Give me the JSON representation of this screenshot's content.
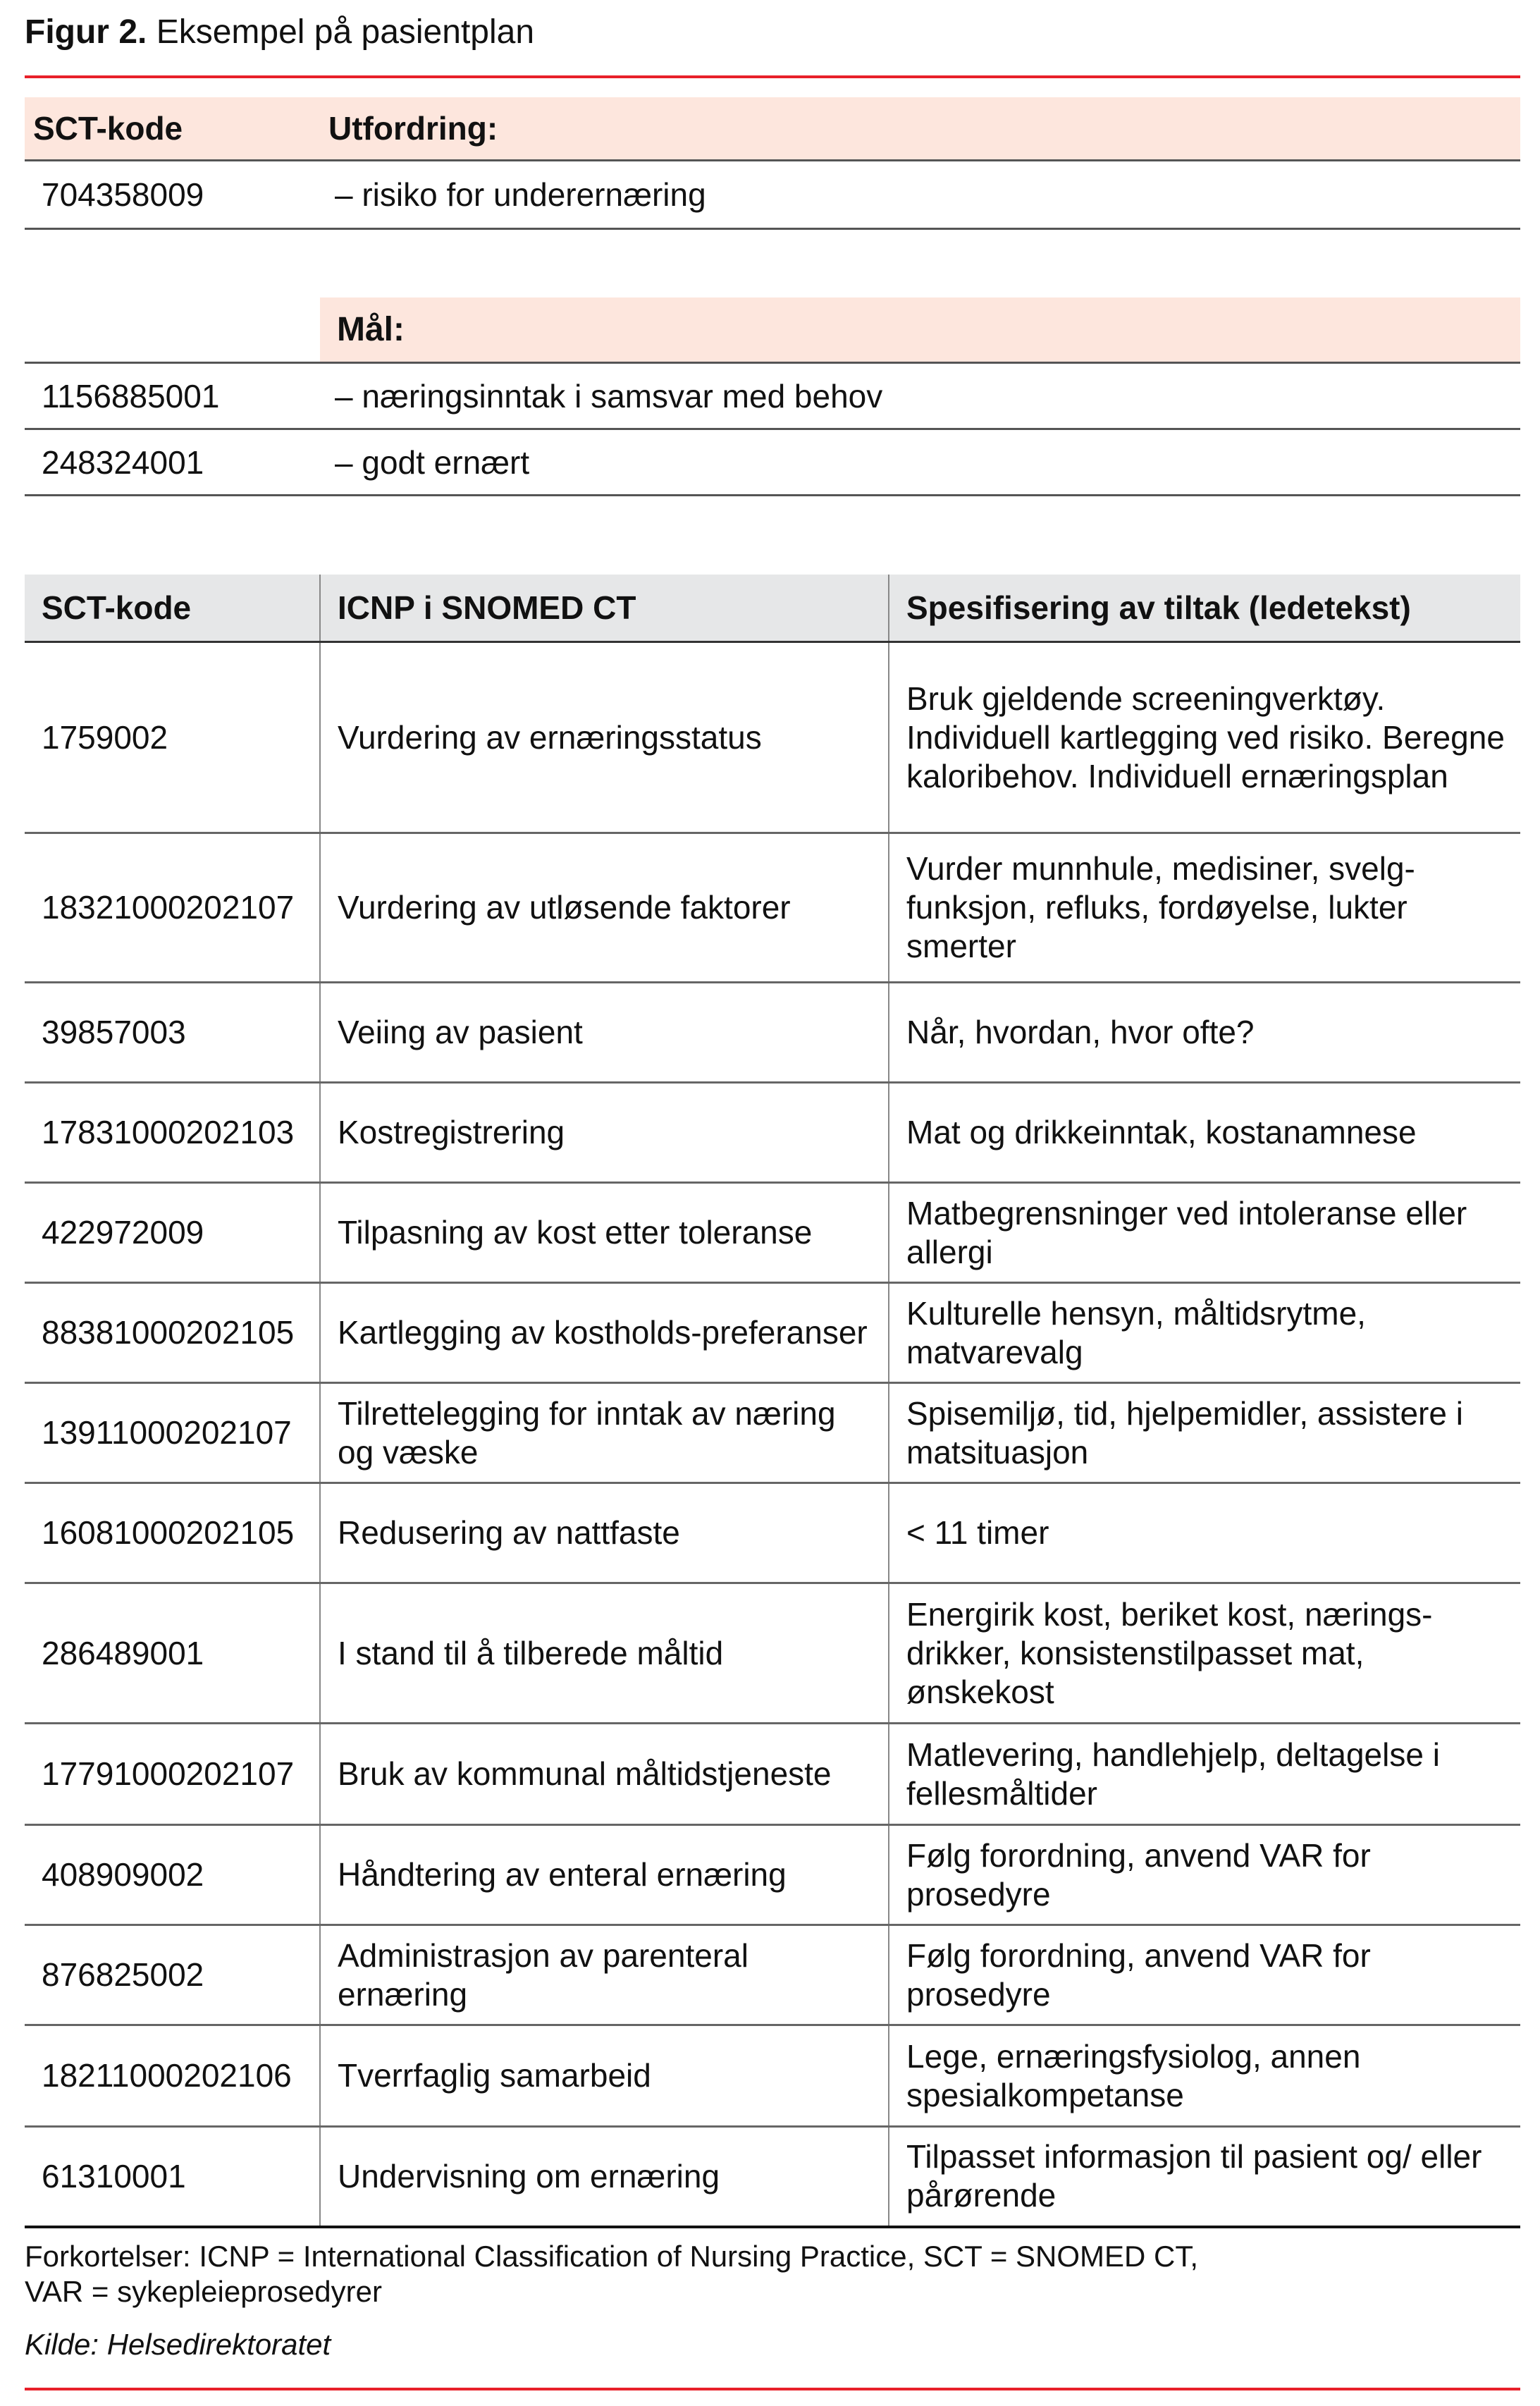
{
  "title": {
    "label": "Figur 2.",
    "text": "Eksempel på pasientplan"
  },
  "problem": {
    "header_code": "SCT-kode",
    "header_label": "Utfordring:",
    "rows": [
      {
        "code": "704358009",
        "text": "– risiko for underernæring"
      }
    ]
  },
  "goals": {
    "header_label": "Mål:",
    "rows": [
      {
        "code": "1156885001",
        "text": "– næringsinntak i samsvar med behov"
      },
      {
        "code": "248324001",
        "text": "– godt ernært"
      }
    ]
  },
  "interventions": {
    "columns": [
      "SCT-kode",
      "ICNP i SNOMED CT",
      "Spesifisering av tiltak (ledetekst)"
    ],
    "rows": [
      {
        "code": "1759002",
        "icnp": "Vurdering av ernæringsstatus",
        "spec": "Bruk gjeldende screeningverktøy. Individuell kartlegging ved risiko. Beregne kaloribehov. Individuell ernæringsplan"
      },
      {
        "code": "18321000202107",
        "icnp": "Vurdering av utløsende faktorer",
        "spec": "Vurder munnhule, medisiner, svelg-funksjon, refluks, fordøyelse, lukter smerter"
      },
      {
        "code": "39857003",
        "icnp": "Veiing av pasient",
        "spec": "Når, hvordan, hvor ofte?"
      },
      {
        "code": "17831000202103",
        "icnp": "Kostregistrering",
        "spec": "Mat og drikkeinntak, kostanamnese"
      },
      {
        "code": "422972009",
        "icnp": "Tilpasning av kost etter toleranse",
        "spec": "Matbegrensninger ved intoleranse eller allergi"
      },
      {
        "code": "88381000202105",
        "icnp": "Kartlegging av kostholds-preferanser",
        "spec": "Kulturelle hensyn, måltidsrytme, matvarevalg"
      },
      {
        "code": "13911000202107",
        "icnp": "Tilrettelegging for inntak av næring og væske",
        "spec": "Spisemiljø, tid, hjelpemidler, assistere i matsituasjon"
      },
      {
        "code": "16081000202105",
        "icnp": "Redusering av nattfaste",
        "spec": "< 11 timer"
      },
      {
        "code": "286489001",
        "icnp": "I stand til å tilberede måltid",
        "spec": "Energirik kost, beriket kost, nærings-drikker, konsistenstilpasset mat, ønskekost"
      },
      {
        "code": "17791000202107",
        "icnp": "Bruk av kommunal måltidstjeneste",
        "spec": "Matlevering, handlehjelp, deltagelse i fellesmåltider"
      },
      {
        "code": "408909002",
        "icnp": "Håndtering av enteral ernæring",
        "spec": "Følg forordning, anvend VAR for prosedyre"
      },
      {
        "code": "876825002",
        "icnp": "Administrasjon av parenteral ernæring",
        "spec": "Følg forordning, anvend VAR for prosedyre"
      },
      {
        "code": "18211000202106",
        "icnp": "Tverrfaglig samarbeid",
        "spec": "Lege, ernæringsfysiolog, annen spesialkompetanse"
      },
      {
        "code": "61310001",
        "icnp": "Undervisning om ernæring",
        "spec": "Tilpasset informasjon til pasient og/ eller pårørende"
      }
    ]
  },
  "footnote": {
    "line1": "Forkortelser: ICNP = International Classification of Nursing Practice, SCT = SNOMED CT,",
    "line2": "VAR = sykepleieprosedyrer"
  },
  "source": "Kilde: Helsedirektoratet",
  "colors": {
    "accent_red": "#e8202a",
    "header_peach": "#fde6dd",
    "header_gray": "#e6e7e8"
  }
}
